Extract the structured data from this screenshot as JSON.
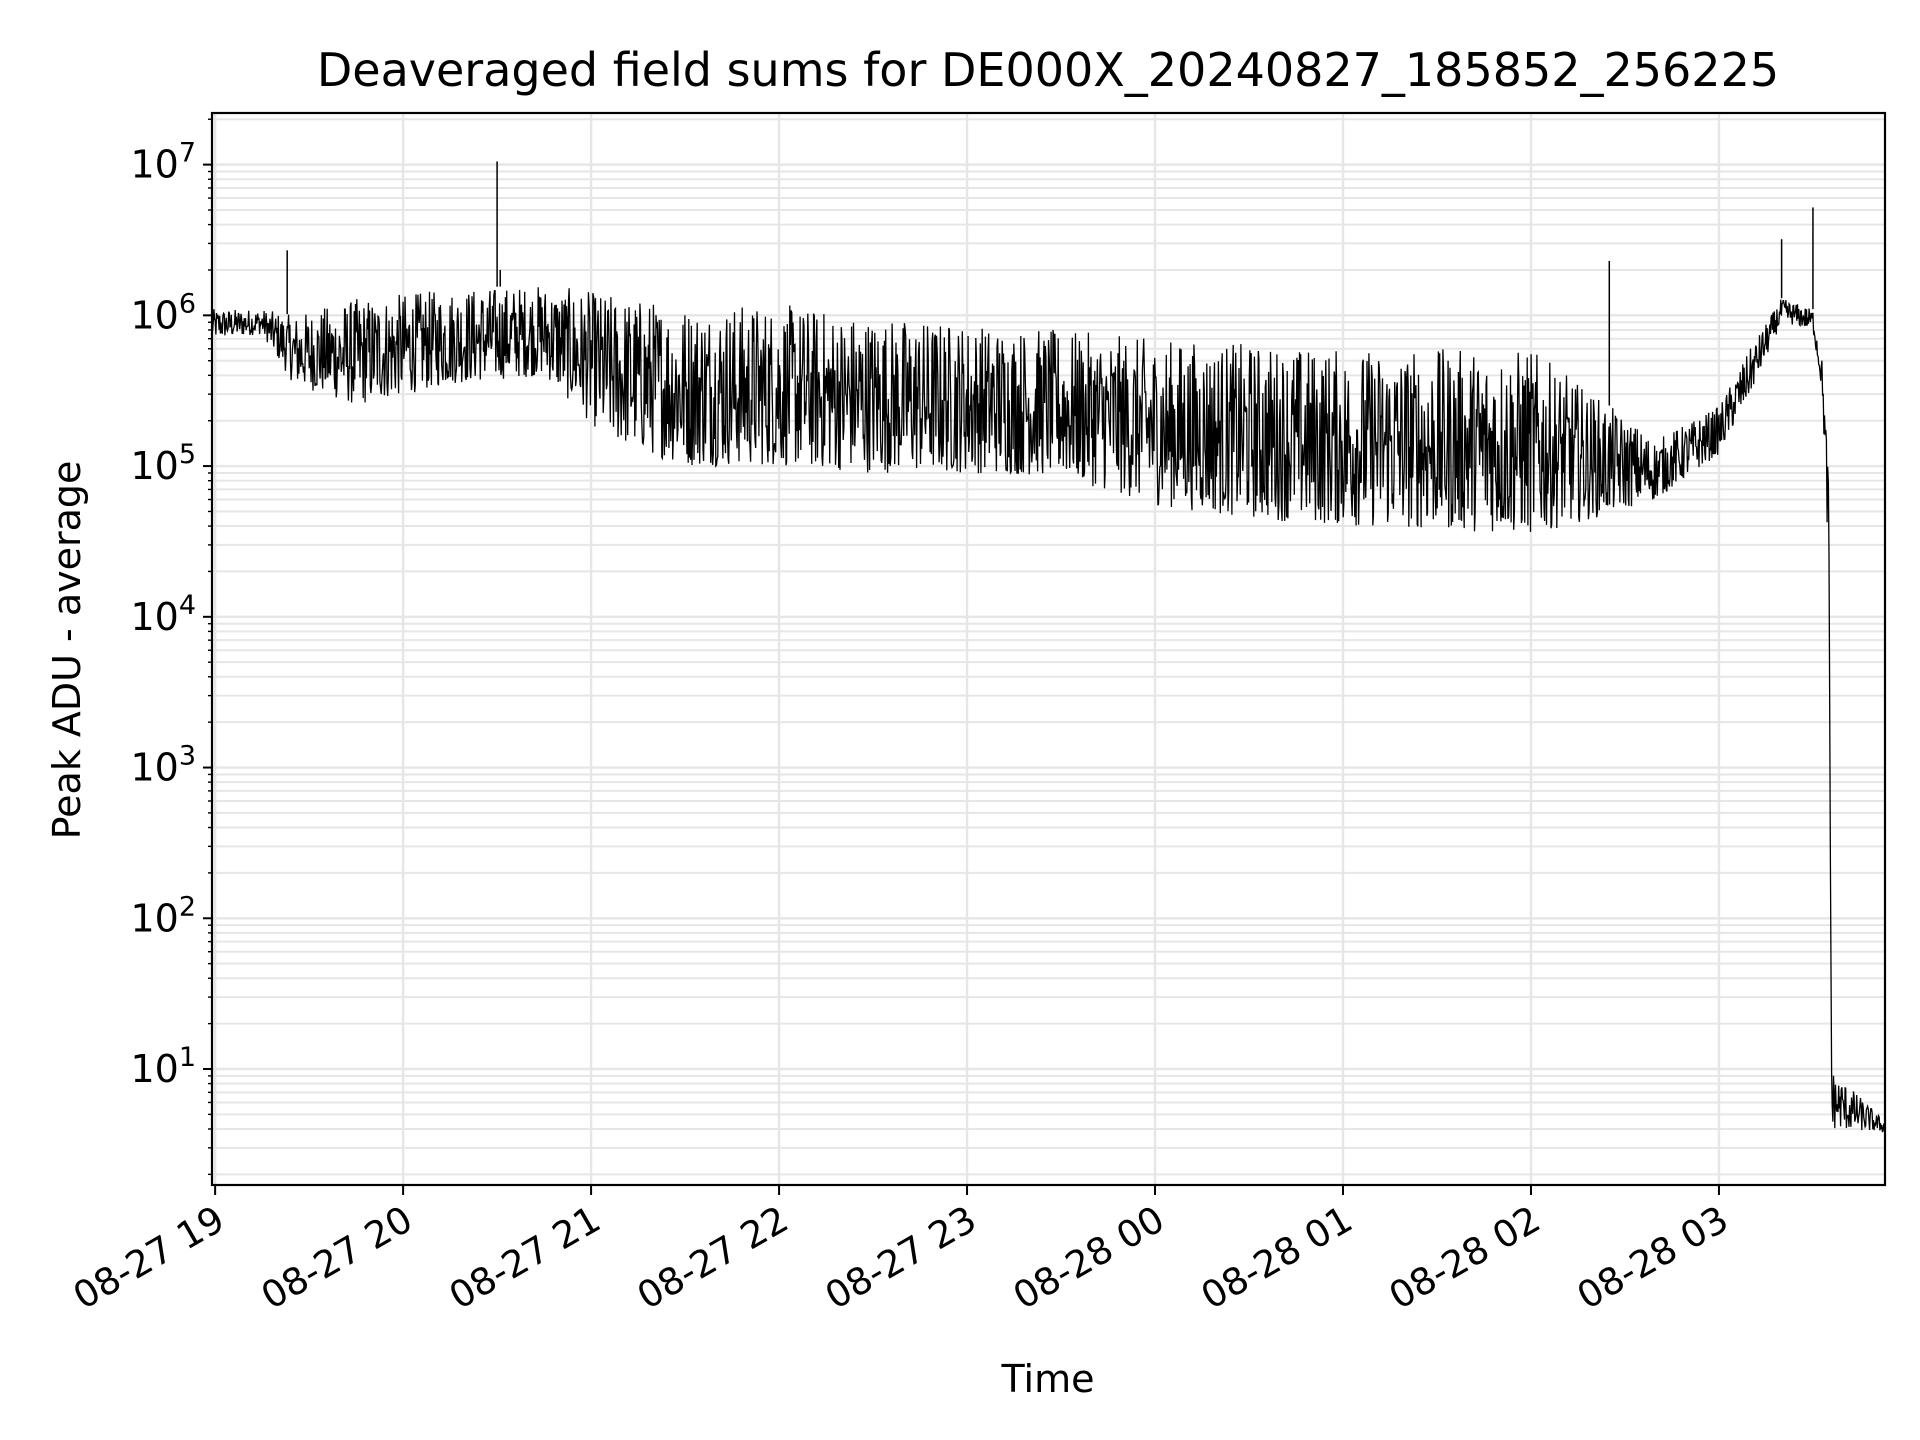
{
  "chart_data": {
    "type": "line",
    "title": "Deaveraged field sums for DE000X_20240827_185852_256225",
    "xlabel": "Time",
    "ylabel": "Peak ADU - average",
    "y_scale": "log",
    "ylim": [
      1.7,
      22000000
    ],
    "xlim": [
      "2024-08-27 18:59",
      "2024-08-28 03:53"
    ],
    "grid": true,
    "legend": "none",
    "colors": {
      "line": "#000000",
      "grid": "#e6e6e6",
      "axes": "#000000"
    },
    "x_ticks": [
      {
        "label": "08-27 19",
        "value": "2024-08-27 19:00"
      },
      {
        "label": "08-27 20",
        "value": "2024-08-27 20:00"
      },
      {
        "label": "08-27 21",
        "value": "2024-08-27 21:00"
      },
      {
        "label": "08-27 22",
        "value": "2024-08-27 22:00"
      },
      {
        "label": "08-27 23",
        "value": "2024-08-27 23:00"
      },
      {
        "label": "08-28 00",
        "value": "2024-08-28 00:00"
      },
      {
        "label": "08-28 01",
        "value": "2024-08-28 01:00"
      },
      {
        "label": "08-28 02",
        "value": "2024-08-28 02:00"
      },
      {
        "label": "08-28 03",
        "value": "2024-08-28 03:00"
      }
    ],
    "y_ticks": [
      {
        "base": "10",
        "exp": "1",
        "value": 10
      },
      {
        "base": "10",
        "exp": "2",
        "value": 100
      },
      {
        "base": "10",
        "exp": "3",
        "value": 1000
      },
      {
        "base": "10",
        "exp": "4",
        "value": 10000
      },
      {
        "base": "10",
        "exp": "5",
        "value": 100000
      },
      {
        "base": "10",
        "exp": "6",
        "value": 1000000
      },
      {
        "base": "10",
        "exp": "7",
        "value": 10000000
      }
    ],
    "envelope": [
      {
        "t": "2024-08-27 18:59",
        "low": 700000,
        "high": 1100000
      },
      {
        "t": "2024-08-27 19:15",
        "low": 750000,
        "high": 1100000
      },
      {
        "t": "2024-08-27 19:25",
        "low": 350000,
        "high": 1000000
      },
      {
        "t": "2024-08-27 19:45",
        "low": 250000,
        "high": 1300000
      },
      {
        "t": "2024-08-27 20:15",
        "low": 350000,
        "high": 1500000
      },
      {
        "t": "2024-08-27 20:45",
        "low": 400000,
        "high": 1600000
      },
      {
        "t": "2024-08-27 21:05",
        "low": 150000,
        "high": 1400000
      },
      {
        "t": "2024-08-27 21:30",
        "low": 100000,
        "high": 1200000
      },
      {
        "t": "2024-08-27 22:00",
        "low": 100000,
        "high": 1200000
      },
      {
        "t": "2024-08-27 22:30",
        "low": 90000,
        "high": 1000000
      },
      {
        "t": "2024-08-27 23:00",
        "low": 90000,
        "high": 900000
      },
      {
        "t": "2024-08-27 23:30",
        "low": 85000,
        "high": 800000
      },
      {
        "t": "2024-08-28 00:00",
        "low": 55000,
        "high": 700000
      },
      {
        "t": "2024-08-28 00:30",
        "low": 45000,
        "high": 650000
      },
      {
        "t": "2024-08-28 01:00",
        "low": 40000,
        "high": 600000
      },
      {
        "t": "2024-08-28 01:30",
        "low": 38000,
        "high": 600000
      },
      {
        "t": "2024-08-28 02:00",
        "low": 35000,
        "high": 600000
      },
      {
        "t": "2024-08-28 02:20",
        "low": 45000,
        "high": 300000
      },
      {
        "t": "2024-08-28 02:40",
        "low": 60000,
        "high": 150000
      },
      {
        "t": "2024-08-28 03:00",
        "low": 120000,
        "high": 250000
      },
      {
        "t": "2024-08-28 03:10",
        "low": 300000,
        "high": 600000
      },
      {
        "t": "2024-08-28 03:20",
        "low": 900000,
        "high": 1300000
      },
      {
        "t": "2024-08-28 03:30",
        "low": 800000,
        "high": 1100000
      },
      {
        "t": "2024-08-28 03:33",
        "low": 300000,
        "high": 500000
      },
      {
        "t": "2024-08-28 03:35",
        "low": 20000,
        "high": 100000
      },
      {
        "t": "2024-08-28 03:36",
        "low": 4,
        "high": 10
      },
      {
        "t": "2024-08-28 03:53",
        "low": 3.8,
        "high": 4.5
      }
    ],
    "spikes": [
      {
        "t": "2024-08-27 19:23",
        "value": 2700000
      },
      {
        "t": "2024-08-27 20:30",
        "value": 10500000
      },
      {
        "t": "2024-08-27 20:31",
        "value": 2000000
      },
      {
        "t": "2024-08-28 02:25",
        "value": 2300000
      },
      {
        "t": "2024-08-28 03:20",
        "value": 3200000
      },
      {
        "t": "2024-08-28 03:30",
        "value": 5200000
      }
    ]
  }
}
